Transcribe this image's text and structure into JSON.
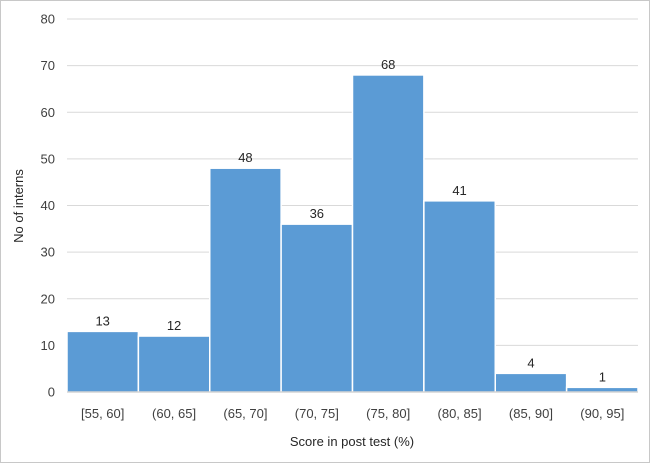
{
  "chart_data": {
    "type": "bar",
    "title": "",
    "xlabel": "Score in post test (%)",
    "ylabel": "No of interns",
    "categories": [
      "[55, 60]",
      "(60, 65]",
      "(65, 70]",
      "(70, 75]",
      "(75, 80]",
      "(80, 85]",
      "(85, 90]",
      "(90, 95]"
    ],
    "values": [
      13,
      12,
      48,
      36,
      68,
      41,
      4,
      1
    ],
    "data_labels": [
      "13",
      "12",
      "48",
      "36",
      "68",
      "41",
      "4",
      "1"
    ],
    "ylim": [
      0,
      80
    ],
    "yticks": [
      "0",
      "10",
      "20",
      "30",
      "40",
      "50",
      "60",
      "70",
      "80"
    ],
    "grid": true,
    "legend": "none",
    "bar_color": "#5b9bd5",
    "bar_edge_color": "#ffffff",
    "grid_color": "#d9d9d9"
  }
}
